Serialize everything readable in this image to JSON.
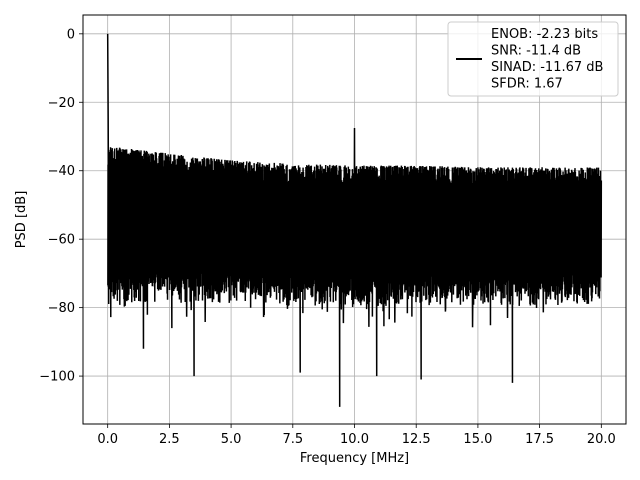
{
  "chart_data": {
    "type": "line",
    "title": "",
    "xlabel": "Frequency [MHz]",
    "ylabel": "PSD [dB]",
    "xlim": [
      -1,
      21
    ],
    "ylim": [
      -114,
      5.5
    ],
    "xticks": [
      0.0,
      2.5,
      5.0,
      7.5,
      10.0,
      12.5,
      15.0,
      17.5,
      20.0
    ],
    "xtick_labels": [
      "0.0",
      "2.5",
      "5.0",
      "7.5",
      "10.0",
      "12.5",
      "15.0",
      "17.5",
      "20.0"
    ],
    "yticks": [
      0,
      -20,
      -40,
      -60,
      -80,
      -100
    ],
    "ytick_labels": [
      "0",
      "−20",
      "−40",
      "−60",
      "−80",
      "−100"
    ],
    "grid": true,
    "legend_position": "top-right",
    "legend_lines": [
      "ENOB: -2.23 bits",
      "SNR: -11.4 dB",
      "SINAD: -11.67 dB",
      "SFDR: 1.67"
    ],
    "series": [
      {
        "color": "#000000",
        "x_range": [
          0,
          20
        ],
        "description_points": {
          "dc_peak": [
            0,
            0
          ],
          "spur": [
            10,
            -27.5
          ]
        },
        "upper_envelope": [
          [
            0.2,
            -33
          ],
          [
            2.5,
            -35
          ],
          [
            5,
            -37
          ],
          [
            7.5,
            -38
          ],
          [
            10,
            -38.5
          ],
          [
            12.5,
            -38.5
          ],
          [
            15,
            -39
          ],
          [
            17.5,
            -39
          ],
          [
            20,
            -39
          ]
        ],
        "lower_envelope": [
          [
            0.2,
            -80
          ],
          [
            2.5,
            -79
          ],
          [
            5,
            -79
          ],
          [
            7.5,
            -80
          ],
          [
            10,
            -80
          ],
          [
            12.5,
            -80
          ],
          [
            15,
            -80
          ],
          [
            17.5,
            -80
          ],
          [
            20,
            -80
          ]
        ],
        "deep_notches": [
          [
            1.45,
            -92
          ],
          [
            2.6,
            -86
          ],
          [
            3.5,
            -100
          ],
          [
            7.8,
            -99
          ],
          [
            9.4,
            -109
          ],
          [
            10.9,
            -100
          ],
          [
            12.7,
            -101
          ],
          [
            16.4,
            -102
          ]
        ]
      }
    ]
  }
}
